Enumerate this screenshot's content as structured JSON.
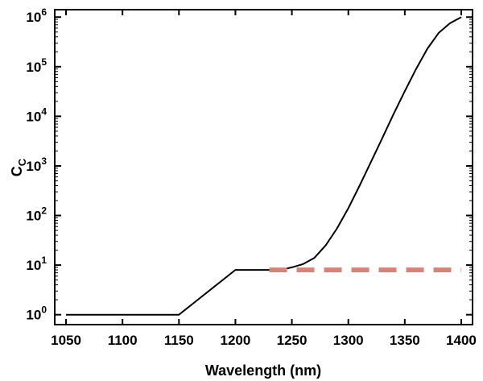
{
  "chart_data": {
    "type": "line",
    "title": "",
    "xlabel": "Wavelength (nm)",
    "ylabel": "C",
    "ylabel_sub": "C",
    "xlim": [
      1040,
      1410
    ],
    "ylim_log10": [
      -0.2,
      6.15
    ],
    "y_scale": "log",
    "grid": false,
    "x_ticks": [
      1050,
      1100,
      1150,
      1200,
      1250,
      1300,
      1350,
      1400
    ],
    "x_tick_labels": [
      "1050",
      "1100",
      "1150",
      "1200",
      "1250",
      "1300",
      "1350",
      "1400"
    ],
    "y_ticks_exp": [
      0,
      1,
      2,
      3,
      4,
      5,
      6
    ],
    "y_tick_base": "10",
    "y_tick_exponents": [
      "0",
      "1",
      "2",
      "3",
      "4",
      "5",
      "6"
    ],
    "series": [
      {
        "style": "solid",
        "color": "#000000",
        "x": [
          1050,
          1150,
          1200,
          1240,
          1250,
          1260,
          1270,
          1280,
          1290,
          1300,
          1310,
          1320,
          1330,
          1340,
          1350,
          1360,
          1370,
          1380,
          1390,
          1400
        ],
        "y": [
          1,
          1,
          8,
          8,
          9,
          10.5,
          14,
          25,
          55,
          140,
          400,
          1200,
          3600,
          11000,
          32000,
          90000,
          230000,
          480000,
          750000,
          1000000
        ]
      },
      {
        "style": "dashed",
        "color": "#d4857a",
        "x": [
          1230,
          1400
        ],
        "y": [
          8,
          8
        ]
      }
    ]
  }
}
